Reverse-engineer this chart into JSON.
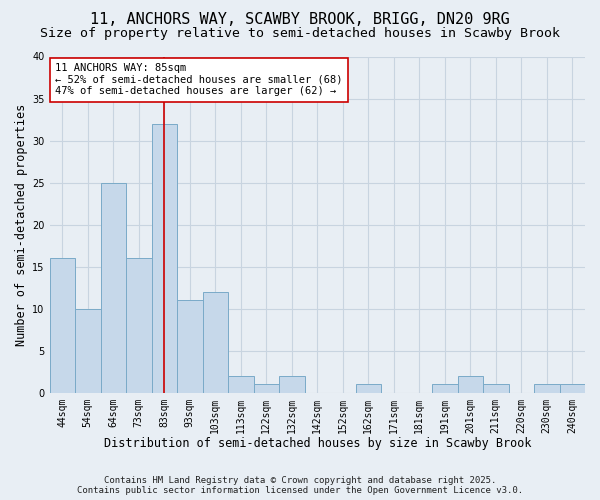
{
  "title": "11, ANCHORS WAY, SCAWBY BROOK, BRIGG, DN20 9RG",
  "subtitle": "Size of property relative to semi-detached houses in Scawby Brook",
  "xlabel": "Distribution of semi-detached houses by size in Scawby Brook",
  "ylabel": "Number of semi-detached properties",
  "categories": [
    "44sqm",
    "54sqm",
    "64sqm",
    "73sqm",
    "83sqm",
    "93sqm",
    "103sqm",
    "113sqm",
    "122sqm",
    "132sqm",
    "142sqm",
    "152sqm",
    "162sqm",
    "171sqm",
    "181sqm",
    "191sqm",
    "201sqm",
    "211sqm",
    "220sqm",
    "230sqm",
    "240sqm"
  ],
  "values": [
    16,
    10,
    25,
    16,
    32,
    11,
    12,
    2,
    1,
    2,
    0,
    0,
    1,
    0,
    0,
    1,
    2,
    1,
    0,
    1,
    1
  ],
  "bar_color": "#c6d8ea",
  "bar_edge_color": "#7aaac8",
  "grid_color": "#c8d4e0",
  "bg_color": "#e8eef4",
  "property_line_x": 4.0,
  "annotation_text_line1": "11 ANCHORS WAY: 85sqm",
  "annotation_text_line2": "← 52% of semi-detached houses are smaller (68)",
  "annotation_text_line3": "47% of semi-detached houses are larger (62) →",
  "ylim": [
    0,
    40
  ],
  "yticks": [
    0,
    5,
    10,
    15,
    20,
    25,
    30,
    35,
    40
  ],
  "footnote": "Contains HM Land Registry data © Crown copyright and database right 2025.\nContains public sector information licensed under the Open Government Licence v3.0.",
  "title_fontsize": 11,
  "subtitle_fontsize": 9.5,
  "xlabel_fontsize": 8.5,
  "ylabel_fontsize": 8.5,
  "tick_fontsize": 7,
  "annot_fontsize": 7.5,
  "footnote_fontsize": 6.5
}
